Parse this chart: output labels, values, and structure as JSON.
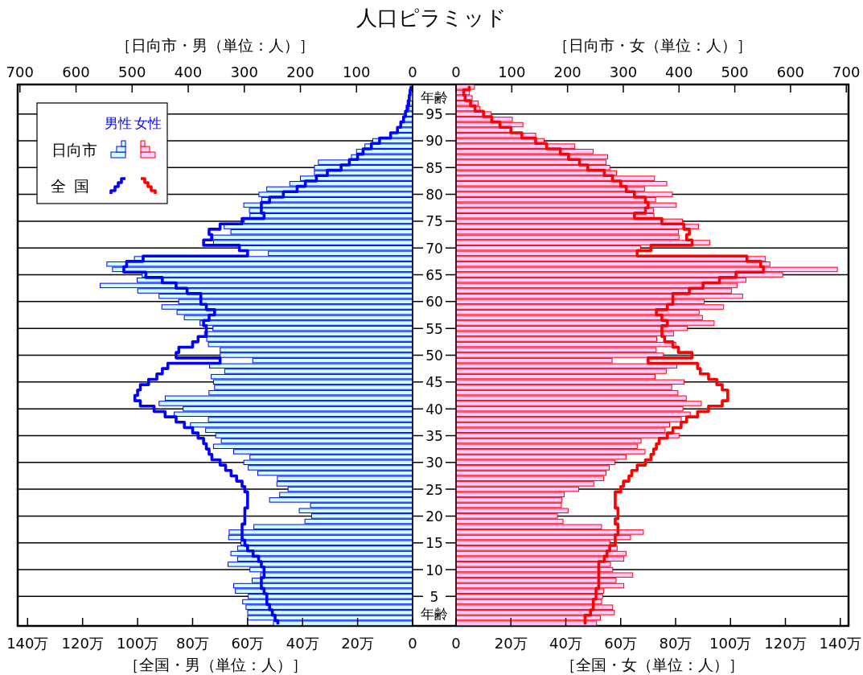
{
  "chart_data": [
    {
      "type": "bar",
      "orientation": "horizontal",
      "title": "人口ピラミッド",
      "x2label": "［日向市・男（単位：人）］",
      "xlabel": "［全国・男（単位：人）］",
      "categories": [
        null,
        null,
        null,
        null,
        null,
        "95",
        null,
        null,
        null,
        null,
        "90",
        null,
        null,
        null,
        null,
        "85",
        null,
        null,
        null,
        null,
        "80",
        null,
        null,
        null,
        null,
        "75",
        null,
        null,
        null,
        null,
        "70",
        null,
        null,
        null,
        null,
        "65",
        null,
        null,
        null,
        null,
        "60",
        null,
        null,
        null,
        null,
        "55",
        null,
        null,
        null,
        null,
        "50",
        null,
        null,
        null,
        null,
        "45",
        null,
        null,
        null,
        null,
        "40",
        null,
        null,
        null,
        null,
        "35",
        null,
        null,
        null,
        null,
        "30",
        null,
        null,
        null,
        null,
        "25",
        null,
        null,
        null,
        null,
        "20",
        null,
        null,
        null,
        null,
        "15",
        null,
        null,
        null,
        null,
        "10",
        null,
        null,
        null,
        null,
        "5",
        null,
        null,
        null,
        null,
        null
      ],
      "x2lim": [
        704,
        0
      ],
      "x2ticks": [
        700,
        600,
        500,
        400,
        300,
        200,
        100,
        0
      ],
      "xlim": [
        143.6,
        0
      ],
      "xticks": [
        {
          "value": 140,
          "label": "140万"
        },
        {
          "value": 120,
          "label": "120万"
        },
        {
          "value": 100,
          "label": "100万"
        },
        {
          "value": 80,
          "label": "80万"
        },
        {
          "value": 60,
          "label": "60万"
        },
        {
          "value": 40,
          "label": "40万"
        },
        {
          "value": 20,
          "label": "20万"
        },
        0
      ],
      "grid": "y",
      "legend": "top left",
      "legend_title": "男性",
      "annotations": [
        "年齢",
        "年齢"
      ],
      "series": [
        {
          "name": "日向市",
          "type": "bar",
          "axis": "x2",
          "color": "#ccffff",
          "values": [
            null,
            null,
            null,
            5,
            6,
            11,
            16,
            21,
            28,
            40,
            71,
            85,
            100,
            109,
            168,
            175,
            175,
            200,
            219,
            260,
            274,
            269,
            301,
            291,
            290,
            300,
            336,
            324,
            360,
            355,
            310,
            257,
            496,
            545,
            535,
            482,
            491,
            557,
            490,
            452,
            417,
            447,
            420,
            407,
            379,
            356,
            371,
            367,
            364,
            343,
            343,
            285,
            362,
            335,
            359,
            355,
            353,
            363,
            441,
            452,
            409,
            425,
            364,
            396,
            369,
            351,
            341,
            355,
            319,
            290,
            301,
            293,
            276,
            241,
            242,
            222,
            237,
            255,
            182,
            202,
            180,
            192,
            283,
            327,
            328,
            306,
            312,
            324,
            312,
            329,
            290,
            271,
            286,
            319,
            316,
            293,
            303,
            297,
            294,
            294,
            248
          ]
        },
        {
          "name": "全国",
          "type": "step",
          "color": "#0000ff",
          "values": [
            0.6,
            0.9,
            1.2,
            1.6,
            2.0,
            2.6,
            3.3,
            4.3,
            5.5,
            8,
            12,
            15,
            18,
            20,
            23,
            26,
            31,
            35,
            39,
            42,
            47,
            52,
            55,
            55,
            54,
            62,
            70,
            74,
            73,
            76,
            63,
            60,
            98,
            104,
            105,
            97,
            91,
            86,
            82,
            77,
            77,
            75,
            72,
            74,
            76,
            75,
            75,
            78,
            80,
            85,
            86,
            70,
            89,
            91,
            93,
            96,
            99,
            100,
            101,
            99,
            94,
            90,
            86,
            83,
            80,
            78,
            76,
            75,
            74,
            73,
            70,
            68,
            66,
            64,
            62,
            61,
            60,
            60,
            60,
            61,
            61,
            61,
            62,
            62,
            62,
            61,
            60,
            58,
            56,
            55,
            54,
            54,
            55,
            55,
            54,
            53,
            53,
            52,
            51,
            50,
            49
          ]
        }
      ]
    },
    {
      "type": "bar",
      "orientation": "horizontal",
      "x2label": "［日向市・女（単位：人）］",
      "xlabel": "［全国・女（単位：人）］",
      "categories": [
        null,
        null,
        null,
        null,
        null,
        "95",
        null,
        null,
        null,
        null,
        "90",
        null,
        null,
        null,
        null,
        "85",
        null,
        null,
        null,
        null,
        "80",
        null,
        null,
        null,
        null,
        "75",
        null,
        null,
        null,
        null,
        "70",
        null,
        null,
        null,
        null,
        "65",
        null,
        null,
        null,
        null,
        "60",
        null,
        null,
        null,
        null,
        "55",
        null,
        null,
        null,
        null,
        "50",
        null,
        null,
        null,
        null,
        "45",
        null,
        null,
        null,
        null,
        "40",
        null,
        null,
        null,
        null,
        "35",
        null,
        null,
        null,
        null,
        "30",
        null,
        null,
        null,
        null,
        "25",
        null,
        null,
        null,
        null,
        "20",
        null,
        null,
        null,
        null,
        "15",
        null,
        null,
        null,
        null,
        "10",
        null,
        null,
        null,
        null,
        "5",
        null,
        null,
        null,
        null,
        null
      ],
      "tick_labels": "x",
      "x2lim": [
        0,
        704
      ],
      "x2ticks": [
        0,
        100,
        200,
        300,
        400,
        500,
        600,
        700
      ],
      "xlim": [
        0,
        143
      ],
      "xticks": [
        0,
        {
          "value": 20,
          "label": "20万"
        },
        {
          "value": 40,
          "label": "40万"
        },
        {
          "value": 60,
          "label": "60万"
        },
        {
          "value": 80,
          "label": "80万"
        },
        {
          "value": 100,
          "label": "100万"
        },
        {
          "value": 120,
          "label": "120万"
        },
        {
          "value": 140,
          "label": "140万"
        }
      ],
      "grid": "y",
      "legend_title": "女性",
      "series": [
        {
          "type": "bar",
          "axis": "x2",
          "color": "#ffccff",
          "values": [
            33,
            24,
            29,
            40,
            43,
            63,
            101,
            120,
            100,
            143,
            158,
            213,
            246,
            272,
            269,
            276,
            288,
            356,
            378,
            338,
            388,
            358,
            395,
            354,
            355,
            406,
            435,
            399,
            400,
            455,
            331,
            324,
            555,
            563,
            684,
            586,
            520,
            504,
            494,
            514,
            445,
            480,
            436,
            442,
            463,
            415,
            390,
            360,
            394,
            359,
            372,
            280,
            396,
            377,
            357,
            409,
            387,
            398,
            413,
            440,
            407,
            420,
            404,
            383,
            375,
            400,
            332,
            325,
            339,
            305,
            285,
            275,
            269,
            265,
            247,
            220,
            194,
            190,
            189,
            201,
            182,
            192,
            261,
            336,
            313,
            276,
            289,
            305,
            301,
            277,
            281,
            317,
            287,
            301,
            265,
            263,
            261,
            281,
            284,
            259,
            252
          ]
        },
        {
          "type": "step",
          "color": "#ff0000",
          "values": [
            4.8,
            2.8,
            3.3,
            5.3,
            6.9,
            10,
            13,
            16,
            20,
            24,
            29,
            33,
            38,
            41,
            45,
            48,
            54,
            57,
            60,
            62,
            65,
            69,
            70,
            69,
            65,
            75,
            83,
            85,
            84,
            86,
            71,
            66,
            106,
            111,
            112,
            102,
            96,
            90,
            85,
            79,
            79,
            77,
            73,
            75,
            77,
            75,
            75,
            76,
            79,
            81,
            86,
            70,
            88,
            89,
            92,
            95,
            97,
            99,
            99,
            97,
            92,
            88,
            84,
            82,
            79,
            77,
            74,
            73,
            72,
            71,
            69,
            66,
            64,
            63,
            61,
            60,
            58,
            58,
            58,
            59,
            59,
            58,
            59,
            59,
            58,
            58,
            56,
            55,
            54,
            52,
            52,
            52,
            52,
            52,
            51,
            51,
            50,
            50,
            49,
            47,
            47
          ]
        }
      ]
    }
  ]
}
